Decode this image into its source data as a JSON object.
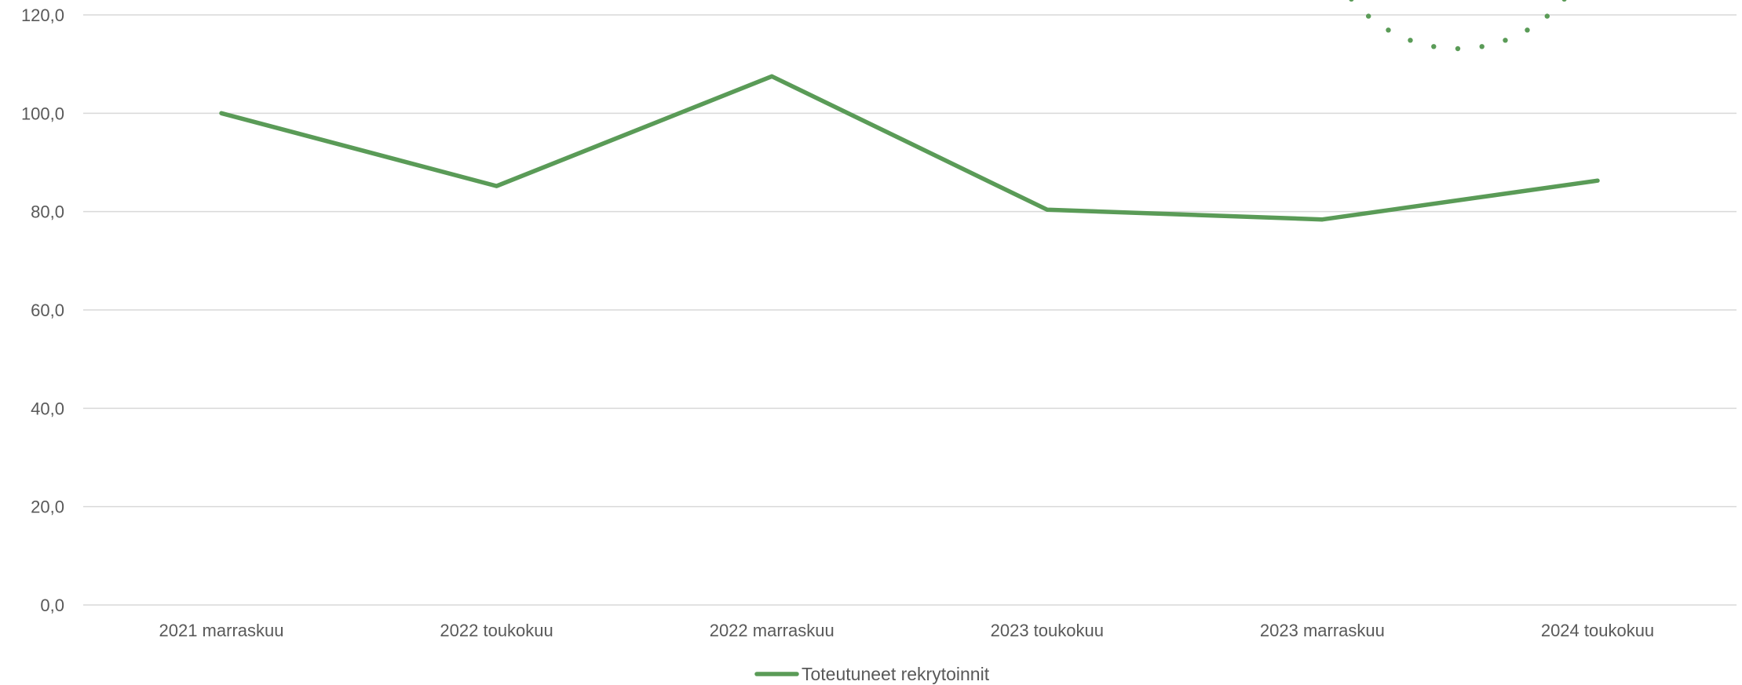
{
  "chart_data": {
    "type": "line",
    "title": "",
    "xlabel": "",
    "ylabel": "",
    "categories": [
      "2021 marraskuu",
      "2022 toukokuu",
      "2022 marraskuu",
      "2023 toukokuu",
      "2023 marraskuu",
      "2024 toukokuu"
    ],
    "y_ticks": [
      "0,0",
      "20,0",
      "40,0",
      "60,0",
      "80,0",
      "100,0",
      "120,0"
    ],
    "ylim": [
      0,
      120
    ],
    "grid": true,
    "legend_position": "bottom",
    "series": [
      {
        "name": "Toteutuneet rekrytoinnit",
        "values": [
          100.0,
          85.2,
          107.5,
          80.4,
          78.4,
          86.3
        ],
        "color": "#5a9b57"
      }
    ],
    "decoration": {
      "type": "dotted-arc",
      "color": "#5a9b57"
    }
  }
}
